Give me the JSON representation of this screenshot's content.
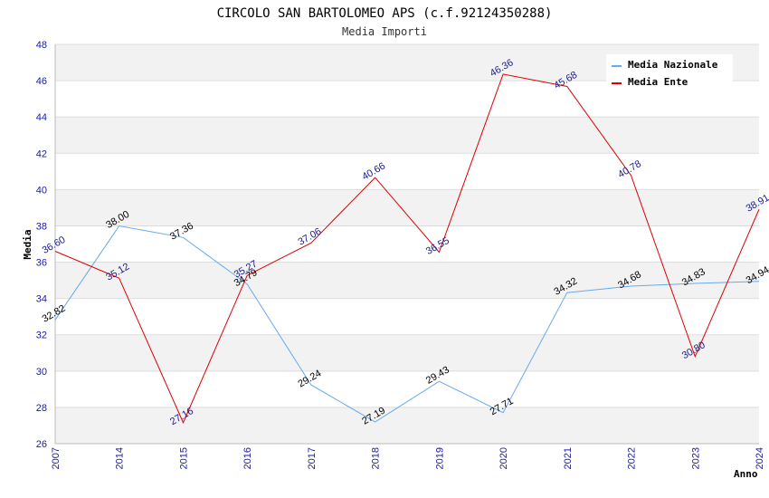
{
  "chart_data": {
    "type": "line",
    "title": "CIRCOLO SAN BARTOLOMEO APS (c.f.92124350288)",
    "subtitle": "Media Importi",
    "xlabel": "Anno",
    "ylabel": "Media",
    "ylim": [
      26,
      48
    ],
    "yticks": [
      26,
      28,
      30,
      32,
      34,
      36,
      38,
      40,
      42,
      44,
      46,
      48
    ],
    "categories": [
      "2007",
      "2014",
      "2015",
      "2016",
      "2017",
      "2018",
      "2019",
      "2020",
      "2021",
      "2022",
      "2023",
      "2024"
    ],
    "grid": true,
    "legend_position": "top-right",
    "series": [
      {
        "name": "Media Nazionale",
        "color": "#66aaee",
        "values": [
          32.82,
          38.0,
          37.36,
          34.79,
          29.24,
          27.19,
          29.43,
          27.71,
          34.32,
          34.68,
          34.83,
          34.94
        ],
        "labels": [
          "32.82",
          "38.00",
          "37.36",
          "34.79",
          "29.24",
          "27.19",
          "29.43",
          "27.71",
          "34.32",
          "34.68",
          "34.83",
          "34.94"
        ]
      },
      {
        "name": "Media Ente",
        "color": "#dd0000",
        "values": [
          36.6,
          35.12,
          27.16,
          35.27,
          37.06,
          40.66,
          36.55,
          46.36,
          45.68,
          40.78,
          30.8,
          38.91
        ],
        "labels": [
          "36.60",
          "35.12",
          "27.16",
          "35.27",
          "37.06",
          "40.66",
          "36.55",
          "46.36",
          "45.68",
          "40.78",
          "30.80",
          "38.91"
        ]
      }
    ]
  }
}
